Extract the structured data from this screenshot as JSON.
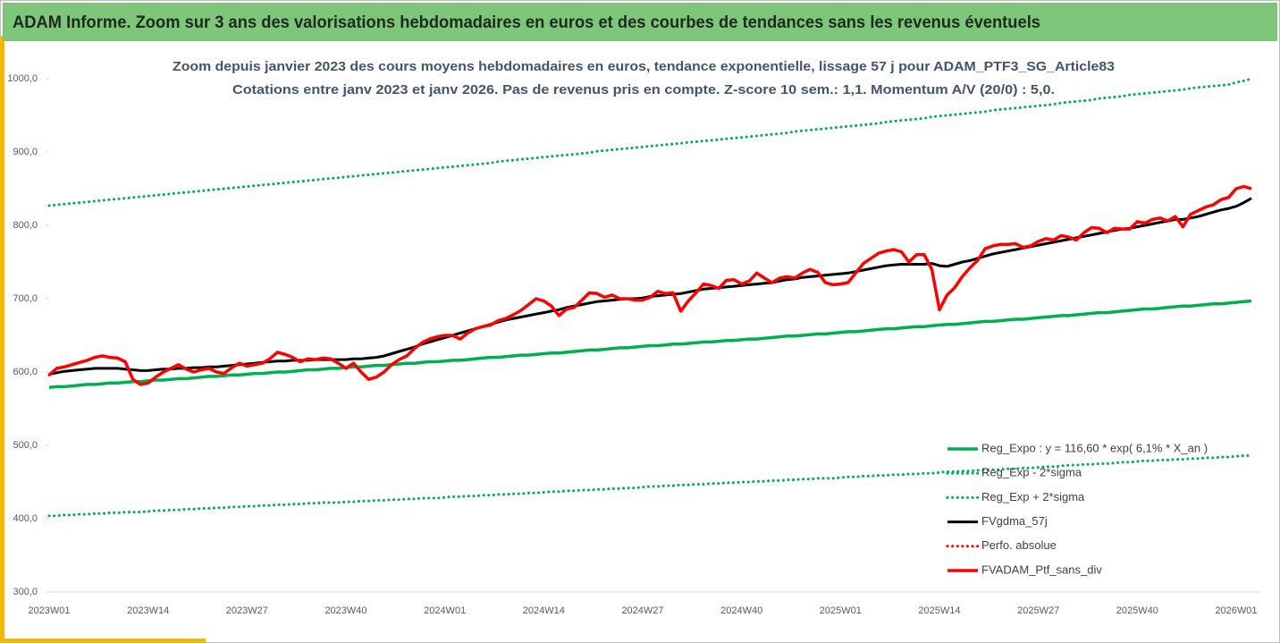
{
  "chart_data": {
    "type": "line",
    "title": "ADAM Informe. Zoom sur 3 ans des valorisations hebdomadaires en euros et des courbes de tendances sans les revenus éventuels",
    "subtitle": [
      "Zoom depuis janvier 2023 des cours moyens hebdomadaires  en euros, tendance exponentielle, lissage 57 j pour ADAM_PTF3_SG_Article83",
      "Cotations entre janv 2023 et janv 2026. Pas de revenus pris en compte. Z-score 10 sem.: 1,1. Momentum A/V (20/0) : 5,0."
    ],
    "categories": [
      "2023W01",
      null,
      null,
      null,
      null,
      null,
      null,
      null,
      null,
      null,
      null,
      null,
      null,
      "2023W14",
      null,
      null,
      null,
      null,
      null,
      null,
      null,
      null,
      null,
      null,
      null,
      null,
      "2023W27",
      null,
      null,
      null,
      null,
      null,
      null,
      null,
      null,
      null,
      null,
      null,
      null,
      "2023W40",
      null,
      null,
      null,
      null,
      null,
      null,
      null,
      null,
      null,
      null,
      null,
      null,
      "2024W01",
      null,
      null,
      null,
      null,
      null,
      null,
      null,
      null,
      null,
      null,
      null,
      null,
      "2024W14",
      null,
      null,
      null,
      null,
      null,
      null,
      null,
      null,
      null,
      null,
      null,
      null,
      "2024W27",
      null,
      null,
      null,
      null,
      null,
      null,
      null,
      null,
      null,
      null,
      null,
      null,
      "2024W40",
      null,
      null,
      null,
      null,
      null,
      null,
      null,
      null,
      null,
      null,
      null,
      null,
      "2025W01",
      null,
      null,
      null,
      null,
      null,
      null,
      null,
      null,
      null,
      null,
      null,
      null,
      "2025W14",
      null,
      null,
      null,
      null,
      null,
      null,
      null,
      null,
      null,
      null,
      null,
      null,
      "2025W27",
      null,
      null,
      null,
      null,
      null,
      null,
      null,
      null,
      null,
      null,
      null,
      null,
      "2025W40",
      null,
      null,
      null,
      null,
      null,
      null,
      null,
      null,
      null,
      null,
      null,
      null,
      "2026W01",
      null,
      null
    ],
    "ylim": [
      300,
      1000
    ],
    "yticks": [
      {
        "value": 300,
        "label": "300,0"
      },
      {
        "value": 400,
        "label": "400,0"
      },
      {
        "value": 500,
        "label": "500,0"
      },
      {
        "value": 600,
        "label": "600,0"
      },
      {
        "value": 700,
        "label": "700,0"
      },
      {
        "value": 800,
        "label": "800,0"
      },
      {
        "value": 900,
        "label": "900,0"
      },
      {
        "value": 1000,
        "label": "1000,0"
      }
    ],
    "grid": false,
    "legend": "lower right",
    "series": [
      {
        "name": "Reg_Expo : y = 116,60 * exp( 6,1% *  X_an )",
        "color": "#00b050",
        "style": "solid",
        "values": [
          579,
          580,
          580,
          581,
          582,
          583,
          583,
          584,
          585,
          585,
          586,
          587,
          587,
          588,
          589,
          589,
          590,
          591,
          591,
          592,
          593,
          594,
          594,
          595,
          596,
          596,
          597,
          598,
          598,
          599,
          600,
          600,
          601,
          602,
          603,
          603,
          604,
          605,
          605,
          606,
          607,
          607,
          608,
          609,
          609,
          610,
          611,
          612,
          612,
          613,
          614,
          614,
          615,
          616,
          616,
          617,
          618,
          619,
          620,
          620,
          621,
          622,
          623,
          623,
          624,
          625,
          626,
          626,
          627,
          628,
          629,
          630,
          630,
          631,
          632,
          633,
          633,
          634,
          635,
          636,
          636,
          637,
          638,
          638,
          639,
          640,
          641,
          641,
          642,
          643,
          643,
          644,
          645,
          645,
          646,
          647,
          648,
          649,
          649,
          650,
          651,
          652,
          652,
          653,
          654,
          655,
          655,
          656,
          657,
          658,
          659,
          659,
          660,
          661,
          662,
          662,
          663,
          664,
          665,
          665,
          666,
          667,
          668,
          669,
          669,
          670,
          671,
          672,
          672,
          673,
          674,
          675,
          676,
          677,
          677,
          678,
          679,
          680,
          681,
          681,
          682,
          683,
          684,
          685,
          686,
          686,
          687,
          688,
          689,
          690,
          690,
          691,
          692,
          693,
          693,
          694,
          695,
          696,
          697
        ]
      },
      {
        "name": "Reg_Exp - 2*sigma",
        "color": "#00b050",
        "style": "dotted",
        "values": [
          404,
          404,
          405,
          405,
          406,
          406,
          407,
          407,
          408,
          408,
          409,
          409,
          409,
          410,
          411,
          411,
          412,
          412,
          413,
          413,
          414,
          414,
          415,
          415,
          416,
          416,
          417,
          417,
          418,
          418,
          419,
          419,
          420,
          420,
          421,
          421,
          422,
          422,
          422,
          423,
          423,
          424,
          424,
          425,
          425,
          426,
          426,
          427,
          427,
          428,
          428,
          428,
          429,
          430,
          430,
          431,
          431,
          432,
          432,
          433,
          433,
          434,
          434,
          435,
          435,
          436,
          437,
          437,
          438,
          438,
          439,
          439,
          440,
          440,
          441,
          441,
          442,
          442,
          443,
          444,
          444,
          445,
          445,
          446,
          446,
          447,
          447,
          448,
          448,
          449,
          449,
          450,
          450,
          451,
          451,
          452,
          452,
          453,
          453,
          454,
          454,
          455,
          455,
          455,
          456,
          457,
          457,
          458,
          458,
          459,
          459,
          460,
          460,
          461,
          461,
          462,
          462,
          463,
          464,
          464,
          465,
          465,
          466,
          466,
          467,
          467,
          468,
          468,
          469,
          469,
          470,
          471,
          471,
          472,
          473,
          473,
          474,
          474,
          475,
          475,
          476,
          477,
          477,
          478,
          479,
          479,
          480,
          480,
          481,
          481,
          482,
          482,
          483,
          483,
          484,
          484,
          485,
          486,
          486
        ]
      },
      {
        "name": "Reg_Exp + 2*sigma",
        "color": "#00b050",
        "style": "dotted",
        "values": [
          827,
          828,
          829,
          830,
          831,
          832,
          833,
          834,
          835,
          836,
          837,
          838,
          839,
          840,
          841,
          842,
          843,
          844,
          845,
          846,
          847,
          848,
          849,
          850,
          851,
          852,
          853,
          854,
          855,
          856,
          857,
          858,
          859,
          860,
          861,
          862,
          863,
          864,
          865,
          866,
          867,
          868,
          869,
          870,
          871,
          872,
          873,
          874,
          875,
          876,
          877,
          878,
          879,
          880,
          881,
          882,
          883,
          884,
          885,
          887,
          888,
          889,
          890,
          891,
          892,
          893,
          894,
          895,
          896,
          897,
          898,
          899,
          901,
          902,
          903,
          904,
          905,
          906,
          907,
          908,
          909,
          910,
          911,
          912,
          913,
          914,
          915,
          916,
          917,
          918,
          919,
          920,
          921,
          922,
          923,
          924,
          925,
          926,
          928,
          929,
          930,
          931,
          932,
          933,
          934,
          935,
          936,
          937,
          938,
          939,
          941,
          942,
          943,
          944,
          945,
          946,
          948,
          949,
          950,
          951,
          952,
          953,
          954,
          955,
          957,
          958,
          959,
          960,
          961,
          962,
          963,
          964,
          965,
          967,
          968,
          969,
          970,
          971,
          973,
          974,
          975,
          976,
          978,
          979,
          980,
          981,
          982,
          983,
          984,
          985,
          987,
          988,
          989,
          990,
          991,
          992,
          995,
          997,
          1000
        ]
      },
      {
        "name": "FVgdma_57j",
        "color": "#000000",
        "style": "solid",
        "values": [
          597,
          599,
          601,
          602,
          603,
          604,
          605,
          605,
          605,
          605,
          604,
          603,
          602,
          602,
          603,
          604,
          604,
          605,
          605,
          606,
          606,
          607,
          607,
          608,
          609,
          610,
          611,
          612,
          613,
          614,
          615,
          615,
          616,
          616,
          616,
          617,
          617,
          617,
          617,
          617,
          618,
          618,
          619,
          620,
          622,
          625,
          628,
          631,
          634,
          638,
          641,
          644,
          647,
          650,
          653,
          656,
          659,
          662,
          665,
          668,
          671,
          673,
          675,
          677,
          679,
          681,
          683,
          685,
          688,
          690,
          692,
          694,
          696,
          697,
          698,
          699,
          700,
          700,
          701,
          703,
          704,
          705,
          706,
          707,
          709,
          711,
          713,
          714,
          715,
          716,
          717,
          718,
          719,
          720,
          721,
          722,
          724,
          726,
          727,
          729,
          730,
          731,
          732,
          733,
          734,
          735,
          737,
          739,
          741,
          743,
          745,
          746,
          747,
          747,
          747,
          747,
          748,
          745,
          744,
          747,
          750,
          752,
          755,
          758,
          761,
          763,
          765,
          767,
          769,
          771,
          773,
          775,
          777,
          779,
          781,
          783,
          785,
          787,
          789,
          791,
          793,
          795,
          796,
          798,
          800,
          802,
          804,
          806,
          808,
          808,
          810,
          812,
          815,
          818,
          821,
          823,
          826,
          831,
          837
        ]
      },
      {
        "name": "Perfo. absolue",
        "color": "#ff0000",
        "style": "dotted",
        "values": [
          596,
          605,
          607,
          610,
          613,
          616,
          620,
          622,
          620,
          619,
          614,
          590,
          583,
          585,
          593,
          600,
          605,
          610,
          604,
          600,
          603,
          605,
          600,
          598,
          606,
          612,
          608,
          610,
          612,
          618,
          627,
          624,
          620,
          614,
          618,
          617,
          619,
          618,
          612,
          605,
          612,
          600,
          590,
          593,
          600,
          610,
          617,
          622,
          632,
          640,
          645,
          648,
          650,
          650,
          645,
          653,
          659,
          662,
          664,
          670,
          673,
          678,
          684,
          692,
          700,
          697,
          690,
          677,
          686,
          688,
          698,
          708,
          707,
          702,
          705,
          700,
          700,
          698,
          698,
          702,
          710,
          707,
          708,
          683,
          697,
          708,
          720,
          718,
          714,
          725,
          726,
          720,
          724,
          735,
          728,
          722,
          728,
          730,
          728,
          735,
          740,
          736,
          722,
          719,
          720,
          722,
          735,
          748,
          755,
          762,
          765,
          767,
          764,
          750,
          760,
          760,
          740,
          685,
          705,
          715,
          730,
          742,
          752,
          768,
          772,
          774,
          774,
          775,
          770,
          772,
          778,
          782,
          780,
          786,
          784,
          780,
          790,
          797,
          796,
          790,
          796,
          795,
          795,
          805,
          803,
          808,
          810,
          806,
          812,
          798,
          815,
          820,
          825,
          828,
          835,
          838,
          850,
          853,
          850
        ]
      },
      {
        "name": "FVADAM_Ptf_sans_div",
        "color": "#ff0000",
        "style": "solid",
        "values": [
          596,
          605,
          607,
          610,
          613,
          616,
          620,
          622,
          620,
          619,
          614,
          590,
          583,
          585,
          593,
          600,
          605,
          610,
          604,
          600,
          603,
          605,
          600,
          598,
          606,
          612,
          608,
          610,
          612,
          618,
          627,
          624,
          620,
          614,
          618,
          617,
          619,
          618,
          612,
          605,
          612,
          600,
          590,
          593,
          600,
          610,
          617,
          622,
          632,
          640,
          645,
          648,
          650,
          650,
          645,
          653,
          659,
          662,
          664,
          670,
          673,
          678,
          684,
          692,
          700,
          697,
          690,
          677,
          686,
          688,
          698,
          708,
          707,
          702,
          705,
          700,
          700,
          698,
          698,
          702,
          710,
          707,
          708,
          683,
          697,
          708,
          720,
          718,
          714,
          725,
          726,
          720,
          724,
          735,
          728,
          722,
          728,
          730,
          728,
          735,
          740,
          736,
          722,
          719,
          720,
          722,
          735,
          748,
          755,
          762,
          765,
          767,
          764,
          750,
          760,
          760,
          740,
          685,
          705,
          715,
          730,
          742,
          752,
          768,
          772,
          774,
          774,
          775,
          770,
          772,
          778,
          782,
          780,
          786,
          784,
          780,
          790,
          797,
          796,
          790,
          796,
          795,
          795,
          805,
          803,
          808,
          810,
          806,
          812,
          798,
          815,
          820,
          825,
          828,
          835,
          838,
          850,
          853,
          850
        ]
      }
    ]
  }
}
